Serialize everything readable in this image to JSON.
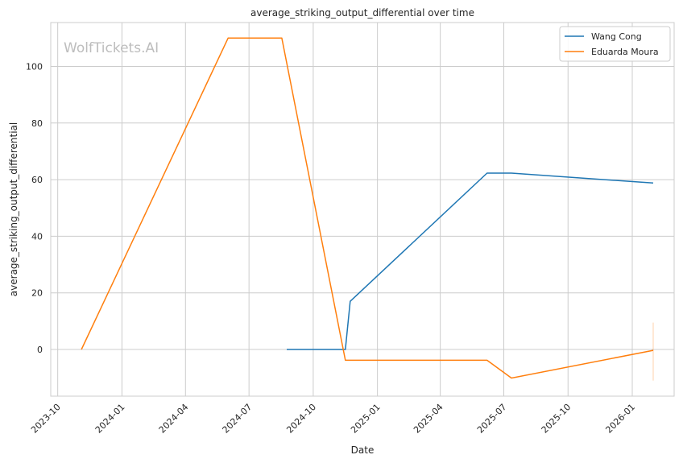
{
  "chart_data": {
    "type": "line",
    "title": "average_striking_output_differential over time",
    "xlabel": "Date",
    "ylabel": "average_striking_output_differential",
    "watermark": "WolfTickets.AI",
    "x_ticks": [
      "2023-10",
      "2024-01",
      "2024-04",
      "2024-07",
      "2024-10",
      "2025-01",
      "2025-04",
      "2025-07",
      "2025-10",
      "2026-01"
    ],
    "y_ticks": [
      "0",
      "20",
      "40",
      "60",
      "80",
      "100"
    ],
    "xlim": [
      "2023-09-21",
      "2026-03-02"
    ],
    "ylim": [
      -16.5,
      115.5
    ],
    "grid": true,
    "legend_position": "top-right",
    "series": [
      {
        "name": "Wang Cong",
        "color": "#1f77b4",
        "points": [
          {
            "x": "2024-08-24",
            "y": 0
          },
          {
            "x": "2024-11-16",
            "y": 0
          },
          {
            "x": "2024-11-23",
            "y": 17
          },
          {
            "x": "2025-06-07",
            "y": 62.3
          },
          {
            "x": "2025-07-12",
            "y": 62.3
          },
          {
            "x": "2026-01-31",
            "y": 58.8
          }
        ]
      },
      {
        "name": "Eduarda Moura",
        "color": "#ff7f0e",
        "points": [
          {
            "x": "2023-11-04",
            "y": 0
          },
          {
            "x": "2024-06-01",
            "y": 110
          },
          {
            "x": "2024-08-17",
            "y": 110
          },
          {
            "x": "2024-11-16",
            "y": -3.8
          },
          {
            "x": "2025-06-07",
            "y": -3.8
          },
          {
            "x": "2025-07-12",
            "y": -10.1
          },
          {
            "x": "2026-01-31",
            "y": -0.3
          }
        ],
        "error_bar": {
          "x": "2026-01-31",
          "low": -11,
          "high": 9.5
        }
      }
    ]
  }
}
